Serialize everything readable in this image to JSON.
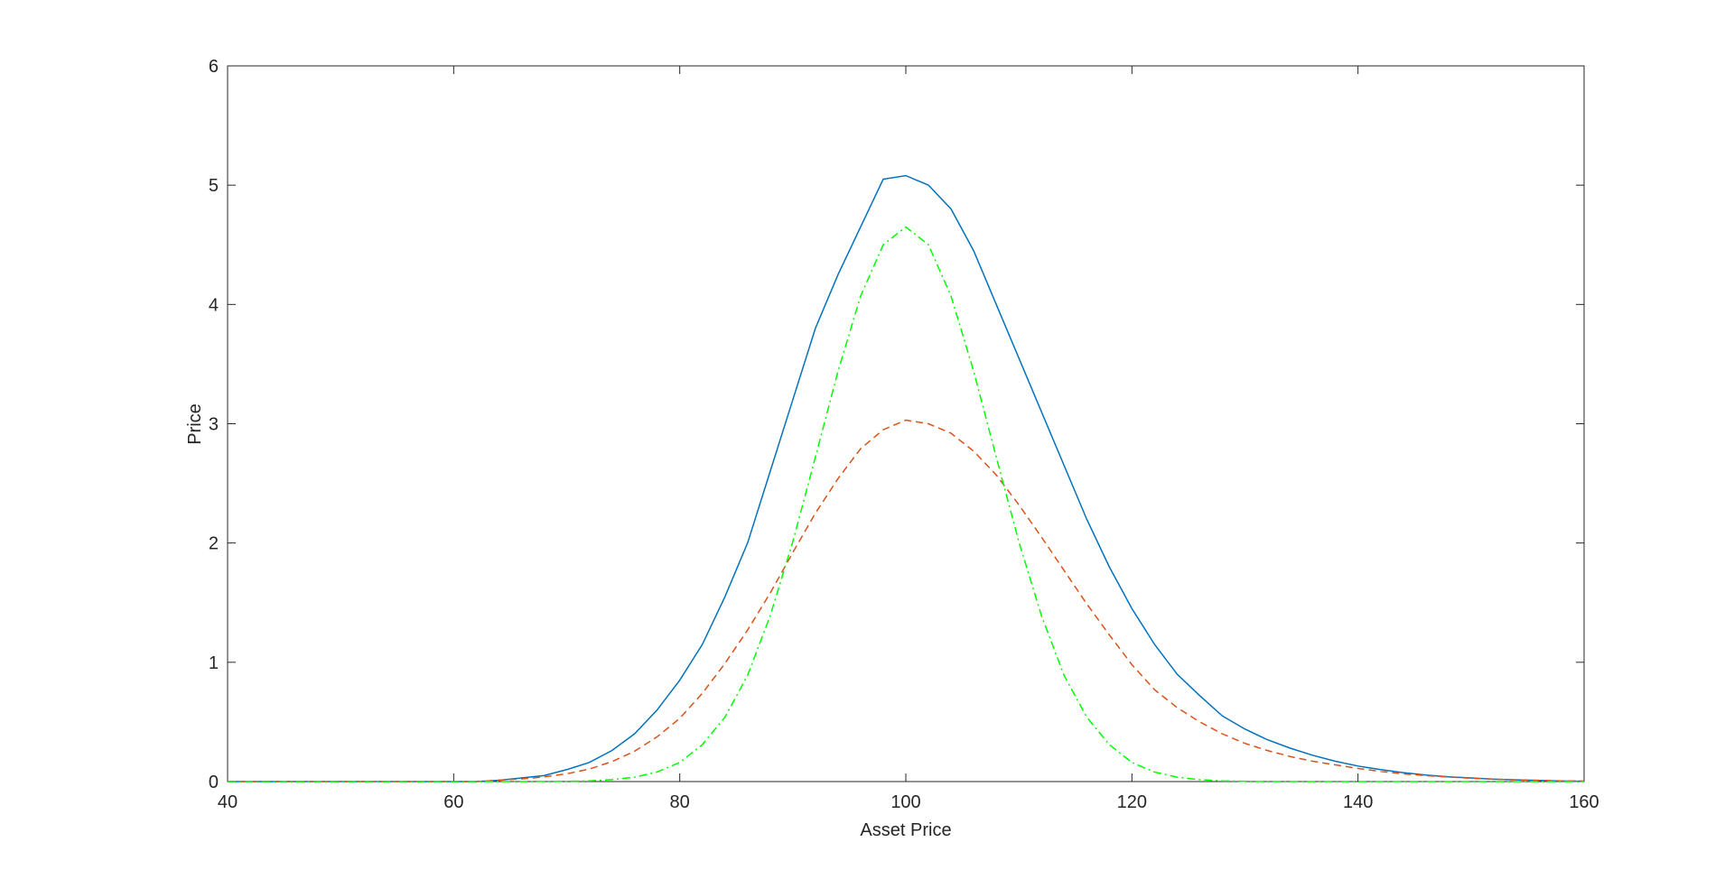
{
  "chart_data": {
    "type": "line",
    "xlabel": "Asset Price",
    "ylabel": "Price",
    "x": [
      40,
      42,
      44,
      46,
      48,
      50,
      52,
      54,
      56,
      58,
      60,
      62,
      64,
      66,
      68,
      70,
      72,
      74,
      76,
      78,
      80,
      82,
      84,
      86,
      88,
      90,
      92,
      94,
      96,
      98,
      100,
      102,
      104,
      106,
      108,
      110,
      112,
      114,
      116,
      118,
      120,
      122,
      124,
      126,
      128,
      130,
      132,
      134,
      136,
      138,
      140,
      142,
      144,
      146,
      148,
      150,
      152,
      154,
      156,
      158,
      160
    ],
    "series": [
      {
        "color": "#0072bd",
        "dash": "solid",
        "values": [
          0,
          0,
          0,
          0,
          0,
          0,
          0,
          0,
          0,
          0,
          0,
          0,
          0.01,
          0.03,
          0.05,
          0.1,
          0.16,
          0.26,
          0.4,
          0.6,
          0.85,
          1.15,
          1.55,
          2.0,
          2.6,
          3.2,
          3.8,
          4.25,
          4.65,
          5.05,
          5.08,
          5.0,
          4.8,
          4.45,
          4.0,
          3.55,
          3.1,
          2.65,
          2.2,
          1.8,
          1.45,
          1.15,
          0.9,
          0.72,
          0.55,
          0.44,
          0.35,
          0.28,
          0.22,
          0.17,
          0.13,
          0.1,
          0.075,
          0.055,
          0.04,
          0.03,
          0.02,
          0.014,
          0.009,
          0.005,
          0.003
        ]
      },
      {
        "color": "#d95319",
        "dash": "dashed",
        "values": [
          0,
          0,
          0,
          0,
          0,
          0,
          0,
          0,
          0,
          0,
          0,
          0,
          0.012,
          0.022,
          0.039,
          0.065,
          0.105,
          0.167,
          0.254,
          0.375,
          0.53,
          0.74,
          0.99,
          1.27,
          1.58,
          1.92,
          2.25,
          2.54,
          2.79,
          2.95,
          3.03,
          3.0,
          2.92,
          2.77,
          2.57,
          2.32,
          2.05,
          1.77,
          1.49,
          1.23,
          0.98,
          0.77,
          0.62,
          0.5,
          0.4,
          0.32,
          0.26,
          0.21,
          0.17,
          0.14,
          0.11,
          0.085,
          0.065,
          0.05,
          0.038,
          0.028,
          0.02,
          0.014,
          0.01,
          0.006,
          0.004
        ]
      },
      {
        "color": "#00ff00",
        "dash": "dashdot",
        "values": [
          0,
          0,
          0,
          0,
          0,
          0,
          0,
          0,
          0,
          0,
          0,
          0,
          0,
          0,
          0.001,
          0.002,
          0.006,
          0.016,
          0.037,
          0.08,
          0.16,
          0.31,
          0.54,
          0.89,
          1.39,
          2.01,
          2.72,
          3.44,
          4.07,
          4.5,
          4.65,
          4.5,
          4.07,
          3.44,
          2.72,
          2.01,
          1.39,
          0.89,
          0.54,
          0.31,
          0.16,
          0.08,
          0.037,
          0.016,
          0.006,
          0.002,
          0,
          0,
          0,
          0,
          0,
          0,
          0,
          0,
          0,
          0,
          0,
          0,
          0,
          0,
          0
        ]
      }
    ],
    "xlim": [
      40,
      160
    ],
    "xticks": [
      40,
      60,
      80,
      100,
      120,
      140,
      160
    ],
    "ylim": [
      0,
      6
    ],
    "yticks": [
      0,
      1,
      2,
      3,
      4,
      5,
      6
    ]
  }
}
